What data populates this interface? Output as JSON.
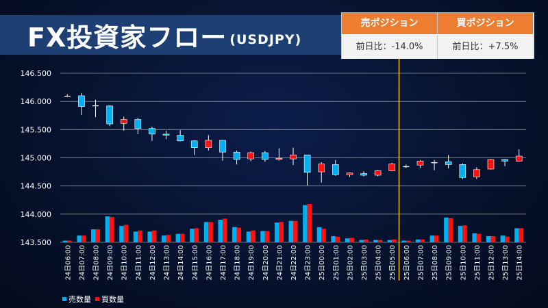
{
  "header": {
    "title": "FX投資家フロー",
    "subtitle": "(USDJPY)"
  },
  "positions": {
    "sell": {
      "label": "売ポジション",
      "change": "前日比：-14.0%"
    },
    "buy": {
      "label": "買ポジション",
      "change": "前日比：+7.5%"
    }
  },
  "colors": {
    "up": "#ff1111",
    "down": "#00b0f0",
    "doji": "#ffffff",
    "marker": "#ffc000",
    "grid": "#ffffff"
  },
  "chart_data": {
    "type": "candlestick_with_volume",
    "yticks": [
      "146.500",
      "146.000",
      "145.500",
      "145.000",
      "144.500",
      "144.000",
      "143.500"
    ],
    "ylim": [
      143.5,
      146.5
    ],
    "marker_after": "25日05:00",
    "legend": [
      {
        "name": "売数量",
        "color": "#00b0f0"
      },
      {
        "name": "買数量",
        "color": "#ff1111"
      }
    ],
    "categories": [
      "24日06:00",
      "24日07:00",
      "24日08:00",
      "24日09:00",
      "24日10:00",
      "24日11:00",
      "24日12:00",
      "24日13:00",
      "24日14:00",
      "24日15:00",
      "24日16:00",
      "24日17:00",
      "24日18:00",
      "24日19:00",
      "24日20:00",
      "24日21:00",
      "24日22:00",
      "24日23:00",
      "25日00:00",
      "25日01:00",
      "25日02:00",
      "25日03:00",
      "25日04:00",
      "25日05:00",
      "25日06:00",
      "25日07:00",
      "25日08:00",
      "25日09:00",
      "25日10:00",
      "25日11:00",
      "25日12:00",
      "25日13:00",
      "25日14:00"
    ],
    "ohlc": [
      [
        146.1,
        146.13,
        146.08,
        146.1
      ],
      [
        146.1,
        146.15,
        145.76,
        145.91
      ],
      [
        145.93,
        146.03,
        145.72,
        145.93
      ],
      [
        145.92,
        145.93,
        145.56,
        145.6
      ],
      [
        145.61,
        145.73,
        145.48,
        145.68
      ],
      [
        145.68,
        145.71,
        145.42,
        145.52
      ],
      [
        145.52,
        145.55,
        145.3,
        145.42
      ],
      [
        145.42,
        145.48,
        145.33,
        145.4
      ],
      [
        145.4,
        145.49,
        145.29,
        145.3
      ],
      [
        145.3,
        145.31,
        145.05,
        145.18
      ],
      [
        145.18,
        145.4,
        145.13,
        145.31
      ],
      [
        145.31,
        145.31,
        144.95,
        145.1
      ],
      [
        145.1,
        145.13,
        144.88,
        144.97
      ],
      [
        144.98,
        145.11,
        144.94,
        145.09
      ],
      [
        145.09,
        145.12,
        144.93,
        144.97
      ],
      [
        144.97,
        145.17,
        144.95,
        144.99
      ],
      [
        144.98,
        145.18,
        144.87,
        145.05
      ],
      [
        145.05,
        145.05,
        144.51,
        144.74
      ],
      [
        144.75,
        144.92,
        144.56,
        144.89
      ],
      [
        144.88,
        144.96,
        144.68,
        144.7
      ],
      [
        144.7,
        144.74,
        144.66,
        144.73
      ],
      [
        144.72,
        144.76,
        144.67,
        144.69
      ],
      [
        144.69,
        144.78,
        144.67,
        144.77
      ],
      [
        144.77,
        144.91,
        144.76,
        144.89
      ],
      [
        144.85,
        144.88,
        144.82,
        144.85
      ],
      [
        144.87,
        144.96,
        144.82,
        144.94
      ],
      [
        144.92,
        144.96,
        144.78,
        144.92
      ],
      [
        144.93,
        145.05,
        144.81,
        144.88
      ],
      [
        144.88,
        144.9,
        144.62,
        144.65
      ],
      [
        144.66,
        144.83,
        144.62,
        144.79
      ],
      [
        144.8,
        144.98,
        144.79,
        144.97
      ],
      [
        144.97,
        144.98,
        144.85,
        144.94
      ],
      [
        144.94,
        145.15,
        144.93,
        145.03
      ]
    ],
    "sell_volume": [
      143.53,
      143.62,
      143.73,
      143.96,
      143.79,
      143.69,
      143.69,
      143.62,
      143.65,
      143.74,
      143.86,
      143.9,
      143.77,
      143.69,
      143.7,
      143.85,
      143.88,
      144.16,
      143.77,
      143.61,
      143.57,
      143.54,
      143.54,
      143.54,
      143.53,
      143.55,
      143.62,
      143.94,
      143.79,
      143.66,
      143.61,
      143.62,
      143.75
    ],
    "buy_volume": [
      143.53,
      143.62,
      143.73,
      143.95,
      143.81,
      143.71,
      143.71,
      143.63,
      143.65,
      143.75,
      143.86,
      143.92,
      143.76,
      143.71,
      143.7,
      143.86,
      143.88,
      144.18,
      143.74,
      143.6,
      143.58,
      143.55,
      143.54,
      143.55,
      143.53,
      143.55,
      143.62,
      143.93,
      143.8,
      143.65,
      143.61,
      143.6,
      143.75
    ]
  }
}
